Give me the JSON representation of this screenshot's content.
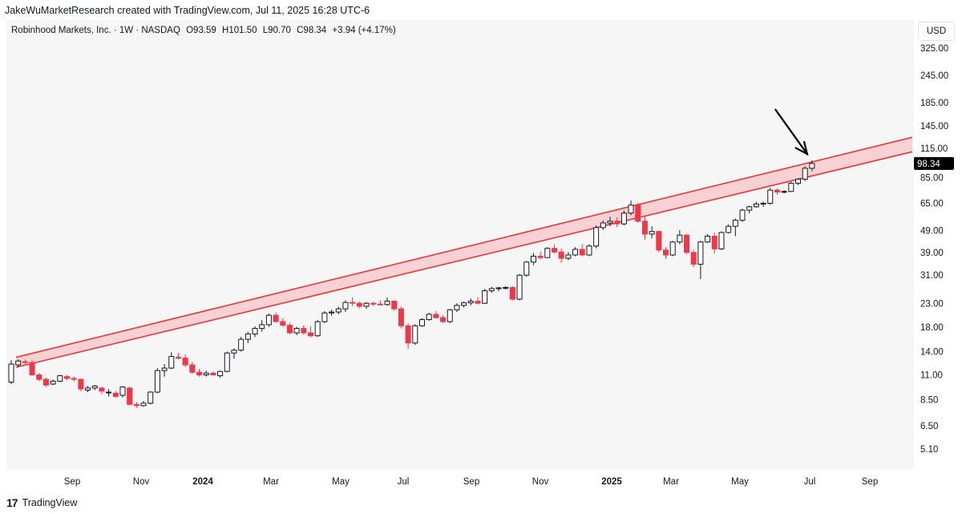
{
  "header": {
    "attribution": "JakeWuMarketResearch created with TradingView.com, Jul 11, 2025 16:28 UTC-6"
  },
  "legend": {
    "symbol": "Robinhood Markets, Inc. · 1W · NASDAQ",
    "open": "O93.59",
    "high": "H101.50",
    "low": "L90.70",
    "close": "C98.34",
    "change": "+3.94 (+4.17%)"
  },
  "axis": {
    "currency": "USD",
    "last_price_label": "98.34"
  },
  "footer": {
    "brand": "TradingView",
    "logo_text": "17"
  },
  "colors": {
    "up_body": "#ffffff",
    "up_border": "#131722",
    "down_body": "#f23645",
    "channel_line": "#e53935",
    "channel_fill": "#f8c8cc",
    "arrow": "#000000"
  },
  "chart_data": {
    "type": "candlestick",
    "title": "Robinhood Markets, Inc. · 1W · NASDAQ",
    "y_scale": "log",
    "y_ticks": [
      325.0,
      245.0,
      185.0,
      145.0,
      115.0,
      85.0,
      65.0,
      49.0,
      39.0,
      31.0,
      23.0,
      18.0,
      14.0,
      11.0,
      8.5,
      6.5,
      5.1
    ],
    "x_ticks": [
      "Sep",
      "Nov",
      "2024",
      "Mar",
      "May",
      "Jul",
      "Sep",
      "Nov",
      "2025",
      "Mar",
      "May",
      "Jul",
      "Sep"
    ],
    "x_ticks_bold": [
      "2024",
      "2025"
    ],
    "last_price": 98.34,
    "candles": [
      {
        "o": 10.2,
        "h": 12.8,
        "l": 10.0,
        "c": 12.3
      },
      {
        "o": 12.2,
        "h": 12.9,
        "l": 11.9,
        "c": 12.7
      },
      {
        "o": 12.6,
        "h": 12.9,
        "l": 12.3,
        "c": 12.5
      },
      {
        "o": 12.5,
        "h": 12.8,
        "l": 10.9,
        "c": 11.0
      },
      {
        "o": 11.0,
        "h": 11.2,
        "l": 10.3,
        "c": 10.5
      },
      {
        "o": 10.5,
        "h": 10.7,
        "l": 9.7,
        "c": 9.9
      },
      {
        "o": 10.0,
        "h": 10.5,
        "l": 9.9,
        "c": 10.3
      },
      {
        "o": 10.3,
        "h": 11.0,
        "l": 10.2,
        "c": 10.9
      },
      {
        "o": 10.8,
        "h": 11.0,
        "l": 10.4,
        "c": 10.6
      },
      {
        "o": 10.6,
        "h": 10.8,
        "l": 10.3,
        "c": 10.5
      },
      {
        "o": 10.5,
        "h": 10.6,
        "l": 9.3,
        "c": 9.5
      },
      {
        "o": 9.4,
        "h": 9.8,
        "l": 9.2,
        "c": 9.6
      },
      {
        "o": 9.6,
        "h": 9.9,
        "l": 9.4,
        "c": 9.8
      },
      {
        "o": 9.6,
        "h": 9.7,
        "l": 9.0,
        "c": 9.3
      },
      {
        "o": 9.2,
        "h": 9.5,
        "l": 8.8,
        "c": 9.2
      },
      {
        "o": 9.1,
        "h": 9.3,
        "l": 8.7,
        "c": 8.8
      },
      {
        "o": 8.9,
        "h": 9.8,
        "l": 8.7,
        "c": 9.7
      },
      {
        "o": 9.6,
        "h": 9.7,
        "l": 8.0,
        "c": 8.1
      },
      {
        "o": 8.1,
        "h": 8.3,
        "l": 7.8,
        "c": 8.0
      },
      {
        "o": 8.0,
        "h": 8.4,
        "l": 7.9,
        "c": 8.2
      },
      {
        "o": 8.2,
        "h": 9.3,
        "l": 8.1,
        "c": 9.2
      },
      {
        "o": 9.2,
        "h": 11.8,
        "l": 9.1,
        "c": 11.5
      },
      {
        "o": 11.5,
        "h": 12.3,
        "l": 10.8,
        "c": 11.8
      },
      {
        "o": 11.8,
        "h": 13.9,
        "l": 11.7,
        "c": 13.3
      },
      {
        "o": 13.2,
        "h": 13.8,
        "l": 12.9,
        "c": 13.1
      },
      {
        "o": 13.1,
        "h": 13.6,
        "l": 11.9,
        "c": 12.2
      },
      {
        "o": 12.2,
        "h": 12.6,
        "l": 11.1,
        "c": 11.3
      },
      {
        "o": 11.3,
        "h": 11.7,
        "l": 10.8,
        "c": 11.0
      },
      {
        "o": 11.0,
        "h": 11.5,
        "l": 10.8,
        "c": 11.2
      },
      {
        "o": 11.2,
        "h": 11.4,
        "l": 10.9,
        "c": 11.0
      },
      {
        "o": 10.9,
        "h": 11.5,
        "l": 10.7,
        "c": 11.4
      },
      {
        "o": 11.4,
        "h": 14.0,
        "l": 11.3,
        "c": 13.8
      },
      {
        "o": 13.8,
        "h": 14.5,
        "l": 13.0,
        "c": 14.2
      },
      {
        "o": 14.2,
        "h": 16.3,
        "l": 14.0,
        "c": 15.9
      },
      {
        "o": 15.9,
        "h": 17.2,
        "l": 15.3,
        "c": 16.8
      },
      {
        "o": 16.8,
        "h": 18.2,
        "l": 16.3,
        "c": 17.8
      },
      {
        "o": 17.8,
        "h": 19.4,
        "l": 17.2,
        "c": 18.5
      },
      {
        "o": 18.5,
        "h": 20.8,
        "l": 18.1,
        "c": 20.4
      },
      {
        "o": 20.4,
        "h": 21.0,
        "l": 18.9,
        "c": 19.1
      },
      {
        "o": 19.1,
        "h": 19.8,
        "l": 18.1,
        "c": 18.4
      },
      {
        "o": 18.4,
        "h": 18.9,
        "l": 16.8,
        "c": 17.0
      },
      {
        "o": 17.0,
        "h": 18.1,
        "l": 16.6,
        "c": 17.8
      },
      {
        "o": 17.8,
        "h": 18.4,
        "l": 16.7,
        "c": 17.0
      },
      {
        "o": 17.0,
        "h": 18.2,
        "l": 16.2,
        "c": 16.5
      },
      {
        "o": 16.5,
        "h": 19.4,
        "l": 16.3,
        "c": 19.1
      },
      {
        "o": 19.1,
        "h": 21.3,
        "l": 18.8,
        "c": 20.9
      },
      {
        "o": 20.9,
        "h": 21.6,
        "l": 20.3,
        "c": 21.1
      },
      {
        "o": 21.1,
        "h": 22.3,
        "l": 20.6,
        "c": 21.8
      },
      {
        "o": 21.8,
        "h": 23.8,
        "l": 21.1,
        "c": 23.3
      },
      {
        "o": 23.3,
        "h": 24.6,
        "l": 22.4,
        "c": 23.1
      },
      {
        "o": 23.1,
        "h": 23.5,
        "l": 21.9,
        "c": 22.4
      },
      {
        "o": 22.4,
        "h": 23.4,
        "l": 21.8,
        "c": 23.1
      },
      {
        "o": 23.1,
        "h": 23.5,
        "l": 22.4,
        "c": 22.9
      },
      {
        "o": 22.9,
        "h": 23.8,
        "l": 22.6,
        "c": 22.8
      },
      {
        "o": 22.8,
        "h": 24.5,
        "l": 22.5,
        "c": 23.6
      },
      {
        "o": 23.6,
        "h": 23.8,
        "l": 21.3,
        "c": 21.8
      },
      {
        "o": 21.8,
        "h": 22.3,
        "l": 17.8,
        "c": 18.3
      },
      {
        "o": 18.3,
        "h": 18.8,
        "l": 14.4,
        "c": 15.3
      },
      {
        "o": 15.3,
        "h": 18.6,
        "l": 15.0,
        "c": 18.3
      },
      {
        "o": 18.3,
        "h": 19.8,
        "l": 18.1,
        "c": 19.5
      },
      {
        "o": 19.5,
        "h": 20.9,
        "l": 19.3,
        "c": 20.6
      },
      {
        "o": 20.6,
        "h": 21.3,
        "l": 19.7,
        "c": 19.9
      },
      {
        "o": 19.9,
        "h": 20.4,
        "l": 18.8,
        "c": 19.1
      },
      {
        "o": 19.1,
        "h": 21.8,
        "l": 18.8,
        "c": 21.6
      },
      {
        "o": 21.6,
        "h": 23.1,
        "l": 21.1,
        "c": 22.6
      },
      {
        "o": 22.6,
        "h": 23.5,
        "l": 22.1,
        "c": 23.2
      },
      {
        "o": 23.2,
        "h": 24.3,
        "l": 22.6,
        "c": 23.6
      },
      {
        "o": 23.6,
        "h": 24.6,
        "l": 22.8,
        "c": 23.1
      },
      {
        "o": 23.1,
        "h": 26.8,
        "l": 22.9,
        "c": 26.3
      },
      {
        "o": 26.3,
        "h": 27.4,
        "l": 25.8,
        "c": 26.9
      },
      {
        "o": 26.9,
        "h": 27.4,
        "l": 26.2,
        "c": 27.1
      },
      {
        "o": 27.1,
        "h": 27.6,
        "l": 26.6,
        "c": 27.2
      },
      {
        "o": 27.2,
        "h": 27.6,
        "l": 23.8,
        "c": 24.1
      },
      {
        "o": 24.1,
        "h": 31.3,
        "l": 23.8,
        "c": 30.9
      },
      {
        "o": 30.9,
        "h": 35.8,
        "l": 30.4,
        "c": 35.4
      },
      {
        "o": 35.4,
        "h": 38.9,
        "l": 34.3,
        "c": 37.6
      },
      {
        "o": 37.6,
        "h": 39.5,
        "l": 36.4,
        "c": 37.1
      },
      {
        "o": 37.1,
        "h": 41.3,
        "l": 36.9,
        "c": 40.8
      },
      {
        "o": 40.8,
        "h": 42.6,
        "l": 38.6,
        "c": 39.3
      },
      {
        "o": 39.3,
        "h": 40.8,
        "l": 35.1,
        "c": 36.8
      },
      {
        "o": 36.8,
        "h": 39.3,
        "l": 36.1,
        "c": 38.1
      },
      {
        "o": 38.1,
        "h": 41.3,
        "l": 37.6,
        "c": 40.4
      },
      {
        "o": 40.4,
        "h": 42.6,
        "l": 37.6,
        "c": 38.1
      },
      {
        "o": 38.1,
        "h": 42.6,
        "l": 37.6,
        "c": 41.8
      },
      {
        "o": 41.8,
        "h": 51.8,
        "l": 40.8,
        "c": 50.6
      },
      {
        "o": 50.6,
        "h": 54.4,
        "l": 49.4,
        "c": 53.1
      },
      {
        "o": 53.1,
        "h": 56.6,
        "l": 51.3,
        "c": 54.1
      },
      {
        "o": 54.1,
        "h": 56.3,
        "l": 50.8,
        "c": 52.6
      },
      {
        "o": 52.6,
        "h": 60.3,
        "l": 51.8,
        "c": 58.8
      },
      {
        "o": 58.8,
        "h": 66.9,
        "l": 57.6,
        "c": 63.9
      },
      {
        "o": 63.9,
        "h": 65.6,
        "l": 53.1,
        "c": 54.1
      },
      {
        "o": 54.1,
        "h": 56.6,
        "l": 44.6,
        "c": 47.3
      },
      {
        "o": 47.3,
        "h": 51.3,
        "l": 45.3,
        "c": 48.6
      },
      {
        "o": 48.6,
        "h": 49.1,
        "l": 39.1,
        "c": 40.1
      },
      {
        "o": 40.1,
        "h": 41.3,
        "l": 36.6,
        "c": 38.1
      },
      {
        "o": 38.1,
        "h": 44.1,
        "l": 37.6,
        "c": 43.6
      },
      {
        "o": 43.6,
        "h": 49.3,
        "l": 42.6,
        "c": 46.8
      },
      {
        "o": 46.8,
        "h": 47.3,
        "l": 38.6,
        "c": 39.1
      },
      {
        "o": 39.1,
        "h": 40.1,
        "l": 33.6,
        "c": 34.6
      },
      {
        "o": 34.6,
        "h": 44.1,
        "l": 29.7,
        "c": 43.6
      },
      {
        "o": 43.6,
        "h": 47.3,
        "l": 43.1,
        "c": 46.3
      },
      {
        "o": 46.3,
        "h": 48.1,
        "l": 38.6,
        "c": 40.6
      },
      {
        "o": 40.6,
        "h": 48.6,
        "l": 40.1,
        "c": 48.1
      },
      {
        "o": 48.1,
        "h": 52.3,
        "l": 47.6,
        "c": 51.3
      },
      {
        "o": 51.3,
        "h": 55.6,
        "l": 46.3,
        "c": 54.6
      },
      {
        "o": 54.6,
        "h": 61.6,
        "l": 53.6,
        "c": 60.6
      },
      {
        "o": 60.6,
        "h": 63.6,
        "l": 58.6,
        "c": 62.8
      },
      {
        "o": 62.8,
        "h": 66.1,
        "l": 62.1,
        "c": 64.6
      },
      {
        "o": 64.6,
        "h": 66.3,
        "l": 62.8,
        "c": 65.1
      },
      {
        "o": 65.1,
        "h": 76.3,
        "l": 64.1,
        "c": 74.6
      },
      {
        "o": 74.6,
        "h": 76.1,
        "l": 71.1,
        "c": 73.1
      },
      {
        "o": 73.1,
        "h": 74.6,
        "l": 72.1,
        "c": 73.6
      },
      {
        "o": 73.6,
        "h": 81.3,
        "l": 73.1,
        "c": 80.1
      },
      {
        "o": 80.1,
        "h": 84.3,
        "l": 78.6,
        "c": 83.6
      },
      {
        "o": 83.6,
        "h": 95.6,
        "l": 82.1,
        "c": 93.6
      },
      {
        "o": 93.59,
        "h": 101.5,
        "l": 90.7,
        "c": 98.34
      }
    ],
    "annotations": [
      {
        "kind": "ascending-channel",
        "lower_start": 11.9,
        "upper_start": 13.2,
        "lower_end": 111,
        "upper_end": 129
      },
      {
        "kind": "arrow",
        "pointing_to": "last candle at upper channel line"
      }
    ]
  }
}
